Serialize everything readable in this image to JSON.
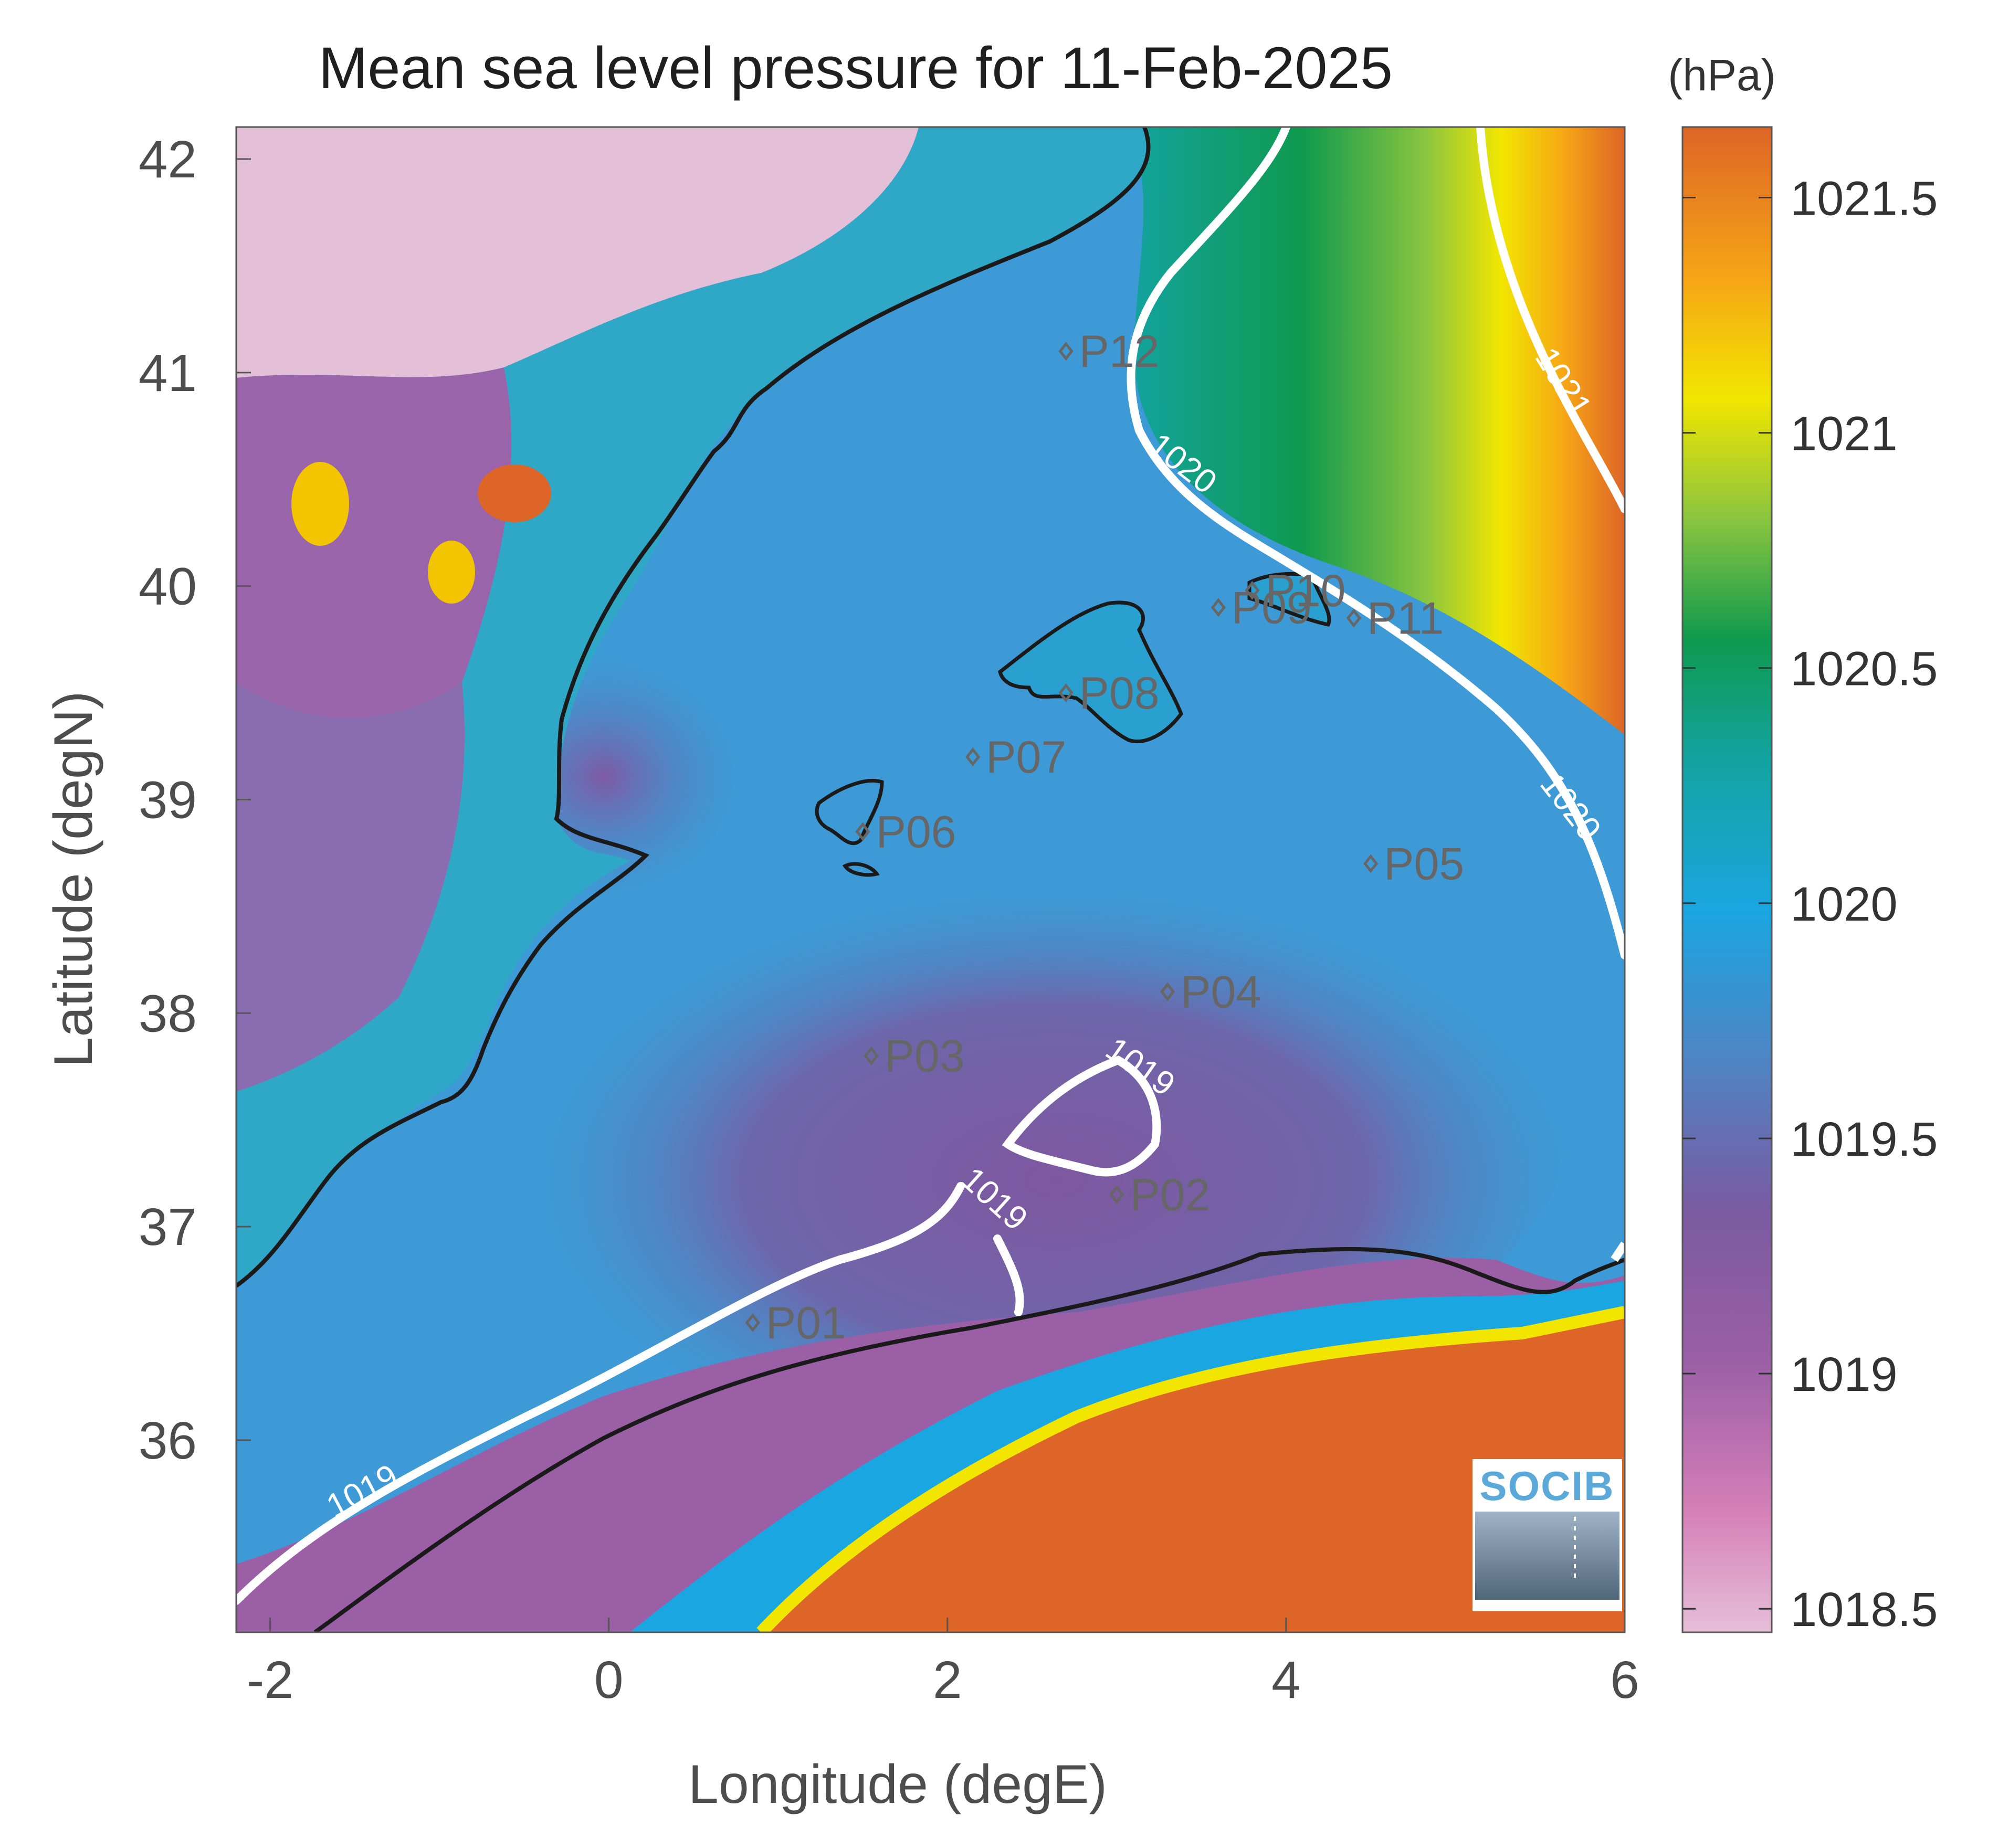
{
  "title": "Mean sea level pressure for 11-Feb-2025",
  "unit": "(hPa)",
  "xlabel": "Longitude (degE)",
  "ylabel": "Latitude (degN)",
  "x_ticks": [
    "-2",
    "0",
    "2",
    "4",
    "6"
  ],
  "y_ticks": [
    "42",
    "41",
    "40",
    "39",
    "38",
    "37",
    "36"
  ],
  "colorbar": {
    "ticks": [
      "1021.5",
      "1021",
      "1020.5",
      "1020",
      "1019.5",
      "1019",
      "1018.5"
    ],
    "colors": [
      "#e6bfd9",
      "#d580b8",
      "#9b5fa6",
      "#7a5aa0",
      "#4f84c4",
      "#1aa6e0",
      "#13a3a0",
      "#0f9a4e",
      "#8bc53f",
      "#f2e600",
      "#f6a516",
      "#dd6527"
    ]
  },
  "stations": [
    "P01",
    "P02",
    "P03",
    "P04",
    "P05",
    "P06",
    "P07",
    "P08",
    "P09",
    "P10",
    "P11",
    "P12"
  ],
  "contour_labels": [
    "1019",
    "1019",
    "1019",
    "1020",
    "1020",
    "1021"
  ],
  "logo": "SOCIB",
  "chart_data": {
    "type": "heatmap",
    "title": "Mean sea level pressure for 11-Feb-2025",
    "xlabel": "Longitude (degE)",
    "ylabel": "Latitude (degN)",
    "xlim": [
      -2.2,
      6
    ],
    "ylim": [
      35.1,
      42.15
    ],
    "colorbar_range": [
      1018.45,
      1021.65
    ],
    "colorbar_unit": "(hPa)",
    "stations": [
      {
        "name": "P01",
        "lon": 0.85,
        "lat": 36.55
      },
      {
        "name": "P02",
        "lon": 3.0,
        "lat": 37.15
      },
      {
        "name": "P03",
        "lon": 1.55,
        "lat": 37.8
      },
      {
        "name": "P04",
        "lon": 3.3,
        "lat": 38.1
      },
      {
        "name": "P05",
        "lon": 4.5,
        "lat": 38.7
      },
      {
        "name": "P06",
        "lon": 1.5,
        "lat": 38.85
      },
      {
        "name": "P07",
        "lon": 2.15,
        "lat": 39.2
      },
      {
        "name": "P08",
        "lon": 2.7,
        "lat": 39.5
      },
      {
        "name": "P09",
        "lon": 3.6,
        "lat": 39.9
      },
      {
        "name": "P10",
        "lon": 3.8,
        "lat": 39.98
      },
      {
        "name": "P11",
        "lon": 4.4,
        "lat": 39.85
      },
      {
        "name": "P12",
        "lon": 2.7,
        "lat": 41.1
      }
    ],
    "contour_levels": [
      1019,
      1020,
      1021
    ]
  }
}
